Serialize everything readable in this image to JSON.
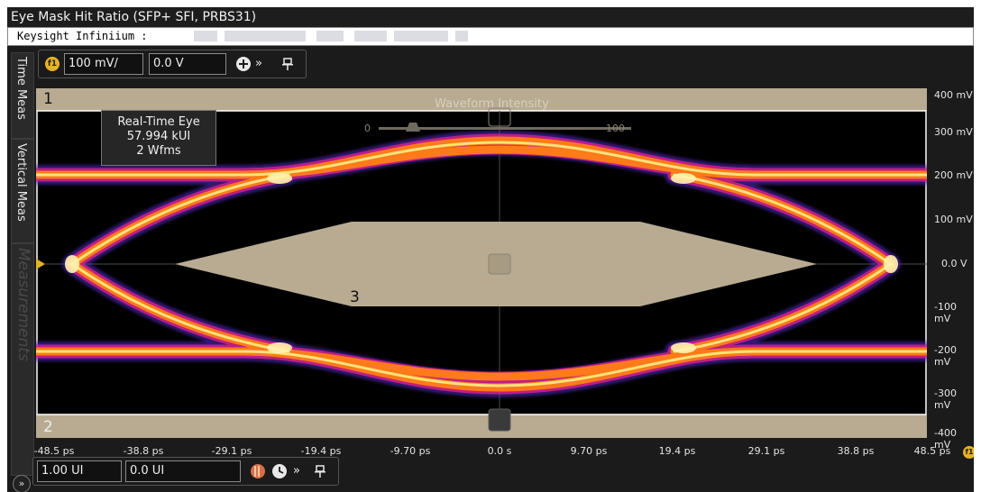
{
  "window": {
    "title": "Eye Mask Hit Ratio (SFP+ SFI, PRBS31)",
    "subtitle": "Keysight Infiniium :"
  },
  "sidebar": {
    "tabs": [
      {
        "label": "Time Meas"
      },
      {
        "label": "Vertical Meas"
      },
      {
        "label": "Measurements"
      }
    ]
  },
  "toolbar_top": {
    "channel_badge": "f1",
    "scale_value": "100 mV/",
    "offset_value": "0.0 V",
    "add_icon": "plus-circle-icon",
    "more_icon": "double-chevron-right-icon",
    "pin_icon": "pin-icon"
  },
  "toolbar_bottom": {
    "scale_value": "1.00 UI",
    "offset_value": "0.0 UI",
    "color_icon": "color-grade-icon",
    "clock_icon": "clock-icon",
    "more_icon": "double-chevron-right-icon",
    "pin_icon": "pin-icon",
    "expand_icon": "double-chevron-right-icon"
  },
  "plot": {
    "markers": {
      "top_region": "1",
      "bottom_region": "2",
      "center_mask": "3"
    },
    "waveform_intensity": {
      "label": "Waveform Intensity",
      "min": "0",
      "max": "100"
    },
    "legend": {
      "line1": "Real-Time Eye",
      "line2": "57.994 kUI",
      "line3": "2 Wfms"
    },
    "y_axis": [
      "400 mV",
      "300 mV",
      "200 mV",
      "100 mV",
      "0.0 V",
      "-100 mV",
      "-200 mV",
      "-300 mV",
      "-400 mV"
    ],
    "x_axis": [
      "-48.5 ps",
      "-38.8 ps",
      "-29.1 ps",
      "-19.4 ps",
      "-9.70 ps",
      "0.0 s",
      "9.70 ps",
      "19.4 ps",
      "29.1 ps",
      "38.8 ps",
      "48.5 ps"
    ],
    "function_badge": "f1",
    "colors": {
      "mask": "#b8ab92",
      "eye_core": "#ffe27a",
      "eye_mid": "#ff7a1a",
      "eye_edge": "#e0208a",
      "eye_outer": "#5a2fd0"
    }
  }
}
